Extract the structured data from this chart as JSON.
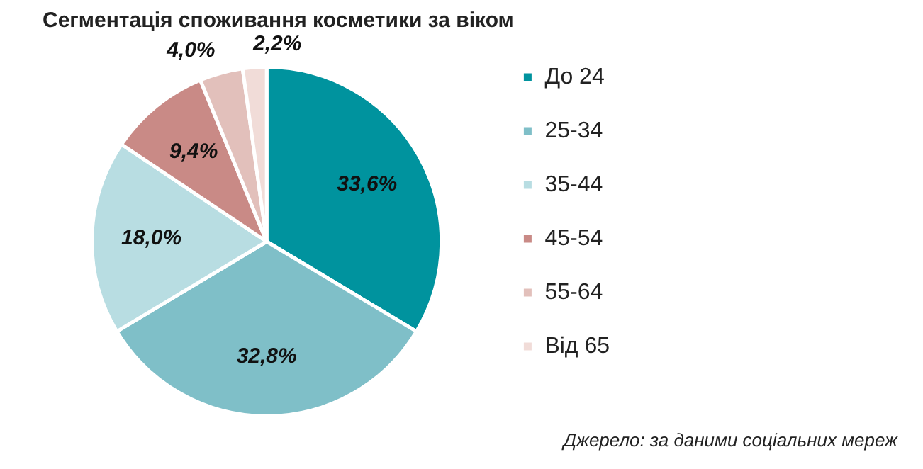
{
  "chart_data": {
    "type": "pie",
    "title": "Сегментація споживання косметики за віком",
    "categories": [
      "До 24",
      "25-34",
      "35-44",
      "45-54",
      "55-64",
      "Від 65"
    ],
    "values": [
      33.6,
      32.8,
      18.0,
      9.4,
      4.0,
      2.2
    ],
    "colors": [
      "#00939e",
      "#7fbfc8",
      "#b8dde2",
      "#c98a86",
      "#e2c0bb",
      "#f1dcd8"
    ],
    "value_labels": [
      "33,6%",
      "32,8%",
      "18,0%",
      "9,4%",
      "4,0%",
      "2,2%"
    ],
    "legend": "right",
    "annotations": [
      "Джерело: за даними соціальних мереж"
    ]
  }
}
